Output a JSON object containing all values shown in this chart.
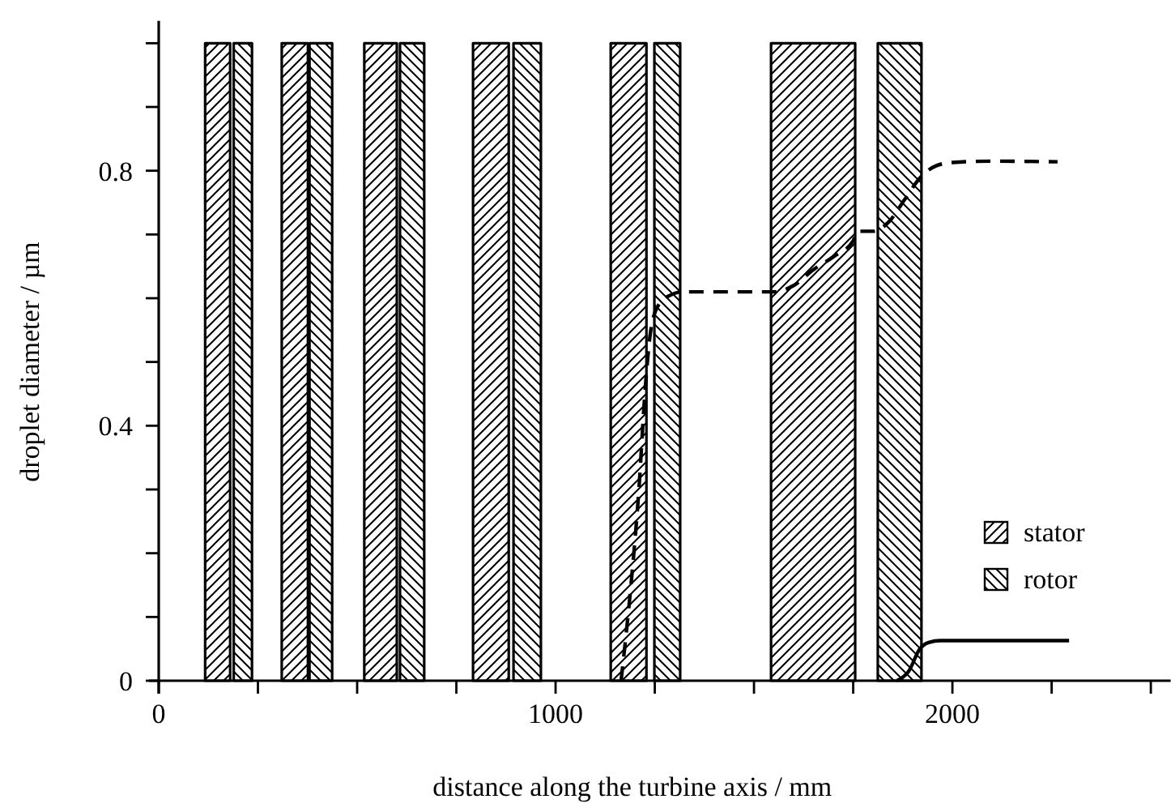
{
  "chart_data": {
    "type": "line",
    "xlabel": "distance along the turbine axis / mm",
    "ylabel": "droplet diameter / µm",
    "xlim": [
      0,
      2550
    ],
    "ylim": [
      0,
      1.035
    ],
    "xticks": [
      0,
      {
        "value": 250,
        "label": null
      },
      {
        "value": 500,
        "label": null
      },
      {
        "value": 750,
        "label": null
      },
      1000,
      {
        "value": 1250,
        "label": null
      },
      {
        "value": 1500,
        "label": null
      },
      {
        "value": 1750,
        "label": null
      },
      2000,
      {
        "value": 2250,
        "label": null
      },
      {
        "value": 2500,
        "label": null
      }
    ],
    "yticks": [
      0,
      {
        "value": 0.1,
        "label": null
      },
      {
        "value": 0.2,
        "label": null
      },
      {
        "value": 0.3,
        "label": null
      },
      0.4,
      {
        "value": 0.5,
        "label": null
      },
      {
        "value": 0.6,
        "label": null
      },
      {
        "value": 0.7,
        "label": null
      },
      0.8,
      {
        "value": 0.9,
        "label": null
      },
      {
        "value": 1.0,
        "label": null
      }
    ],
    "series": [
      {
        "name": "stator",
        "type": "area",
        "color": "#000000",
        "x": [
          117,
          117,
          180,
          180,
          250,
          310,
          310,
          376,
          376,
          450,
          518,
          518,
          600,
          600,
          700,
          792,
          792,
          882,
          882,
          1000,
          1139,
          1139,
          1229,
          1229,
          1400,
          1543,
          1543,
          1755,
          1755
        ],
        "values": [
          0,
          1,
          1,
          0,
          null,
          0,
          1,
          1,
          0,
          null,
          0,
          1,
          1,
          0,
          null,
          0,
          1,
          1,
          0,
          null,
          0,
          1,
          1,
          0,
          null,
          0,
          1,
          1,
          0
        ]
      },
      {
        "name": "rotor",
        "type": "area",
        "color": "#000000",
        "x": [
          189,
          189,
          235,
          235,
          300,
          380,
          380,
          437,
          437,
          550,
          608,
          608,
          669,
          669,
          750,
          894,
          894,
          963,
          963,
          1100,
          1249,
          1249,
          1314,
          1314,
          1600,
          1812,
          1812,
          1922,
          1922
        ],
        "values": [
          0,
          1,
          1,
          0,
          null,
          0,
          1,
          1,
          0,
          null,
          0,
          1,
          1,
          0,
          null,
          0,
          1,
          1,
          0,
          null,
          0,
          1,
          1,
          0,
          null,
          0,
          1,
          1,
          0
        ]
      },
      {
        "color": "#000000",
        "line_style": "dashed",
        "x": [
          1165,
          1190,
          1210,
          1225,
          1240,
          1260,
          1290,
          1320,
          1550,
          1600,
          1650,
          1700,
          1750,
          1760,
          1790,
          1800,
          1840,
          1880,
          1920,
          1960,
          2000,
          2100,
          2265
        ],
        "values": [
          0,
          0.15,
          0.3,
          0.45,
          0.55,
          0.59,
          0.605,
          0.61,
          0.61,
          0.62,
          0.645,
          0.665,
          0.69,
          0.705,
          0.705,
          0.705,
          0.72,
          0.755,
          0.79,
          0.808,
          0.813,
          0.815,
          0.814
        ]
      },
      {
        "color": "#000000",
        "line_style": "solid",
        "x": [
          1860,
          1890,
          1918,
          1940,
          1970,
          2100,
          2294
        ],
        "values": [
          0,
          0.015,
          0.05,
          0.06,
          0.063,
          0.063,
          0.063
        ]
      }
    ],
    "legend": "right"
  }
}
